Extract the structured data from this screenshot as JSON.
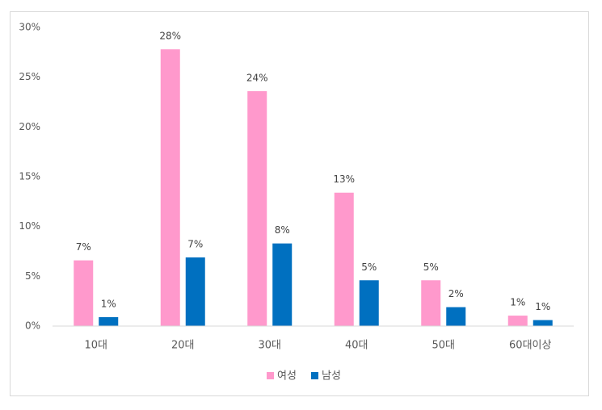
{
  "chart_data": {
    "type": "bar",
    "categories": [
      "10대",
      "20대",
      "30대",
      "40대",
      "50대",
      "60대이상"
    ],
    "series": [
      {
        "name": "여성",
        "color": "#ff99cc",
        "values": [
          6.6,
          27.8,
          23.6,
          13.4,
          4.6,
          1.05
        ],
        "value_labels": [
          "7%",
          "28%",
          "24%",
          "13%",
          "5%",
          "1%"
        ]
      },
      {
        "name": "남성",
        "color": "#0070c0",
        "values": [
          0.9,
          6.9,
          8.3,
          4.6,
          1.9,
          0.6
        ],
        "value_labels": [
          "1%",
          "7%",
          "8%",
          "5%",
          "2%",
          "1%"
        ]
      }
    ],
    "ylim": [
      0,
      30
    ],
    "yticks": [
      {
        "value": 0,
        "label": "0%"
      },
      {
        "value": 5,
        "label": "5%"
      },
      {
        "value": 10,
        "label": "10%"
      },
      {
        "value": 15,
        "label": "15%"
      },
      {
        "value": 20,
        "label": "20%"
      },
      {
        "value": 25,
        "label": "25%"
      },
      {
        "value": 30,
        "label": "30%"
      }
    ],
    "grid": false,
    "legend": "bottom"
  }
}
